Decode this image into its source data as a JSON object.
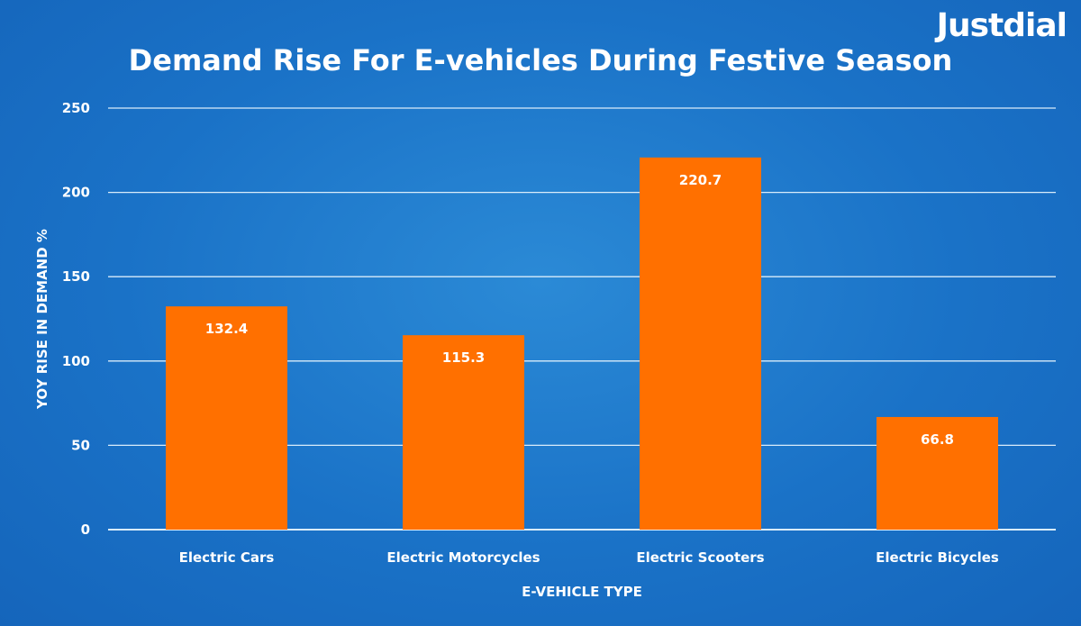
{
  "brand": {
    "logo_text": "Justdial"
  },
  "chart_data": {
    "type": "bar",
    "title": "Demand Rise For E-vehicles During Festive Season",
    "xlabel": "E-VEHICLE TYPE",
    "ylabel": "YOY RISE IN DEMAND %",
    "categories": [
      "Electric Cars",
      "Electric Motorcycles",
      "Electric Scooters",
      "Electric Bicycles"
    ],
    "values": [
      132.4,
      115.3,
      220.7,
      66.8
    ],
    "data_labels": [
      "132.4",
      "115.3",
      "220.7",
      "66.8"
    ],
    "ylim": [
      0,
      250
    ],
    "yticks": [
      0,
      50,
      100,
      150,
      200,
      250
    ],
    "grid": true,
    "legend": "none",
    "colors": {
      "bar": "#ff7000",
      "gridline": "#d9ecfa",
      "background": "#1a72c7",
      "text": "#ffffff"
    }
  }
}
